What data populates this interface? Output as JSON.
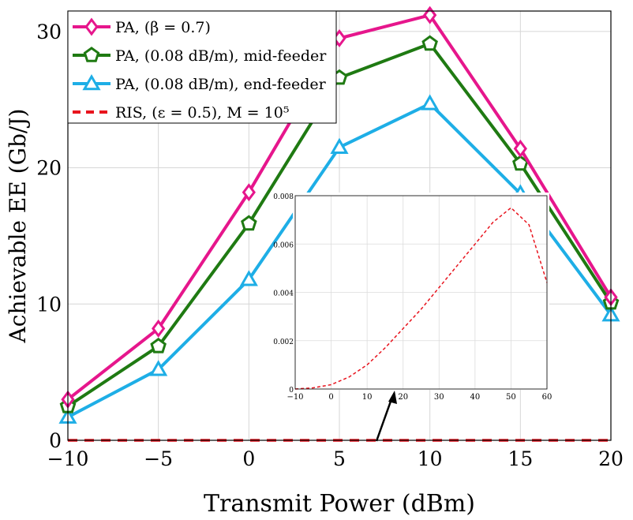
{
  "chart_data": [
    {
      "type": "line",
      "xlabel": "Transmit Power (dBm)",
      "ylabel": "Achievable EE (Gb/J)",
      "xlim": [
        -10,
        20
      ],
      "ylim": [
        0,
        31.5
      ],
      "xticks": [
        -10,
        -5,
        0,
        5,
        10,
        15,
        20
      ],
      "yticks": [
        0,
        10,
        20,
        30
      ],
      "xtick_labels": [
        "−10",
        "−5",
        "0",
        "5",
        "10",
        "15",
        "20"
      ],
      "ytick_labels": [
        "0",
        "10",
        "20",
        "30"
      ],
      "grid": true,
      "legend_position": "top-left",
      "x": [
        -10,
        -5,
        0,
        5,
        10,
        15,
        20
      ],
      "series": [
        {
          "name": "PA, (β = 0.7)",
          "color": "#e6168c",
          "marker": "diamond",
          "values": [
            3.0,
            8.2,
            18.2,
            29.5,
            31.2,
            21.4,
            10.5
          ]
        },
        {
          "name": "PA, (0.08 dB/m), mid-feeder",
          "color": "#1f7a12",
          "marker": "pentagon",
          "values": [
            2.5,
            6.9,
            15.9,
            26.6,
            29.1,
            20.3,
            10.1
          ]
        },
        {
          "name": "PA, (0.08 dB/m), end-feeder",
          "color": "#1eaee6",
          "marker": "triangle",
          "values": [
            1.7,
            5.2,
            11.8,
            21.5,
            24.7,
            18.1,
            9.2
          ]
        },
        {
          "name": "RIS, (ε = 0.5), M = 10⁵",
          "color": "#e8141e",
          "marker": "none",
          "dashed": true,
          "values": [
            0.0,
            0.0,
            0.0,
            0.0,
            0.0,
            0.0,
            0.0
          ]
        }
      ]
    },
    {
      "type": "line",
      "role": "inset",
      "xlim": [
        -10,
        60
      ],
      "ylim": [
        0,
        0.008
      ],
      "xticks": [
        -10,
        0,
        10,
        20,
        30,
        40,
        50,
        60
      ],
      "yticks": [
        0,
        0.002,
        0.004,
        0.006,
        0.008
      ],
      "xtick_labels": [
        "−10",
        "0",
        "10",
        "20",
        "30",
        "40",
        "50",
        "60"
      ],
      "ytick_labels": [
        "0",
        "0.002",
        "0.004",
        "0.006",
        "0.008"
      ],
      "grid": true,
      "series": [
        {
          "name": "RIS",
          "color": "#e8141e",
          "dashed": true,
          "x": [
            -10,
            -5,
            0,
            5,
            10,
            15,
            20,
            25,
            30,
            35,
            40,
            45,
            50,
            55,
            60
          ],
          "values": [
            0.0,
            5e-05,
            0.00018,
            0.0005,
            0.001,
            0.0017,
            0.0025,
            0.0033,
            0.0042,
            0.0051,
            0.006,
            0.0069,
            0.0075,
            0.0068,
            0.0044
          ]
        }
      ]
    }
  ]
}
